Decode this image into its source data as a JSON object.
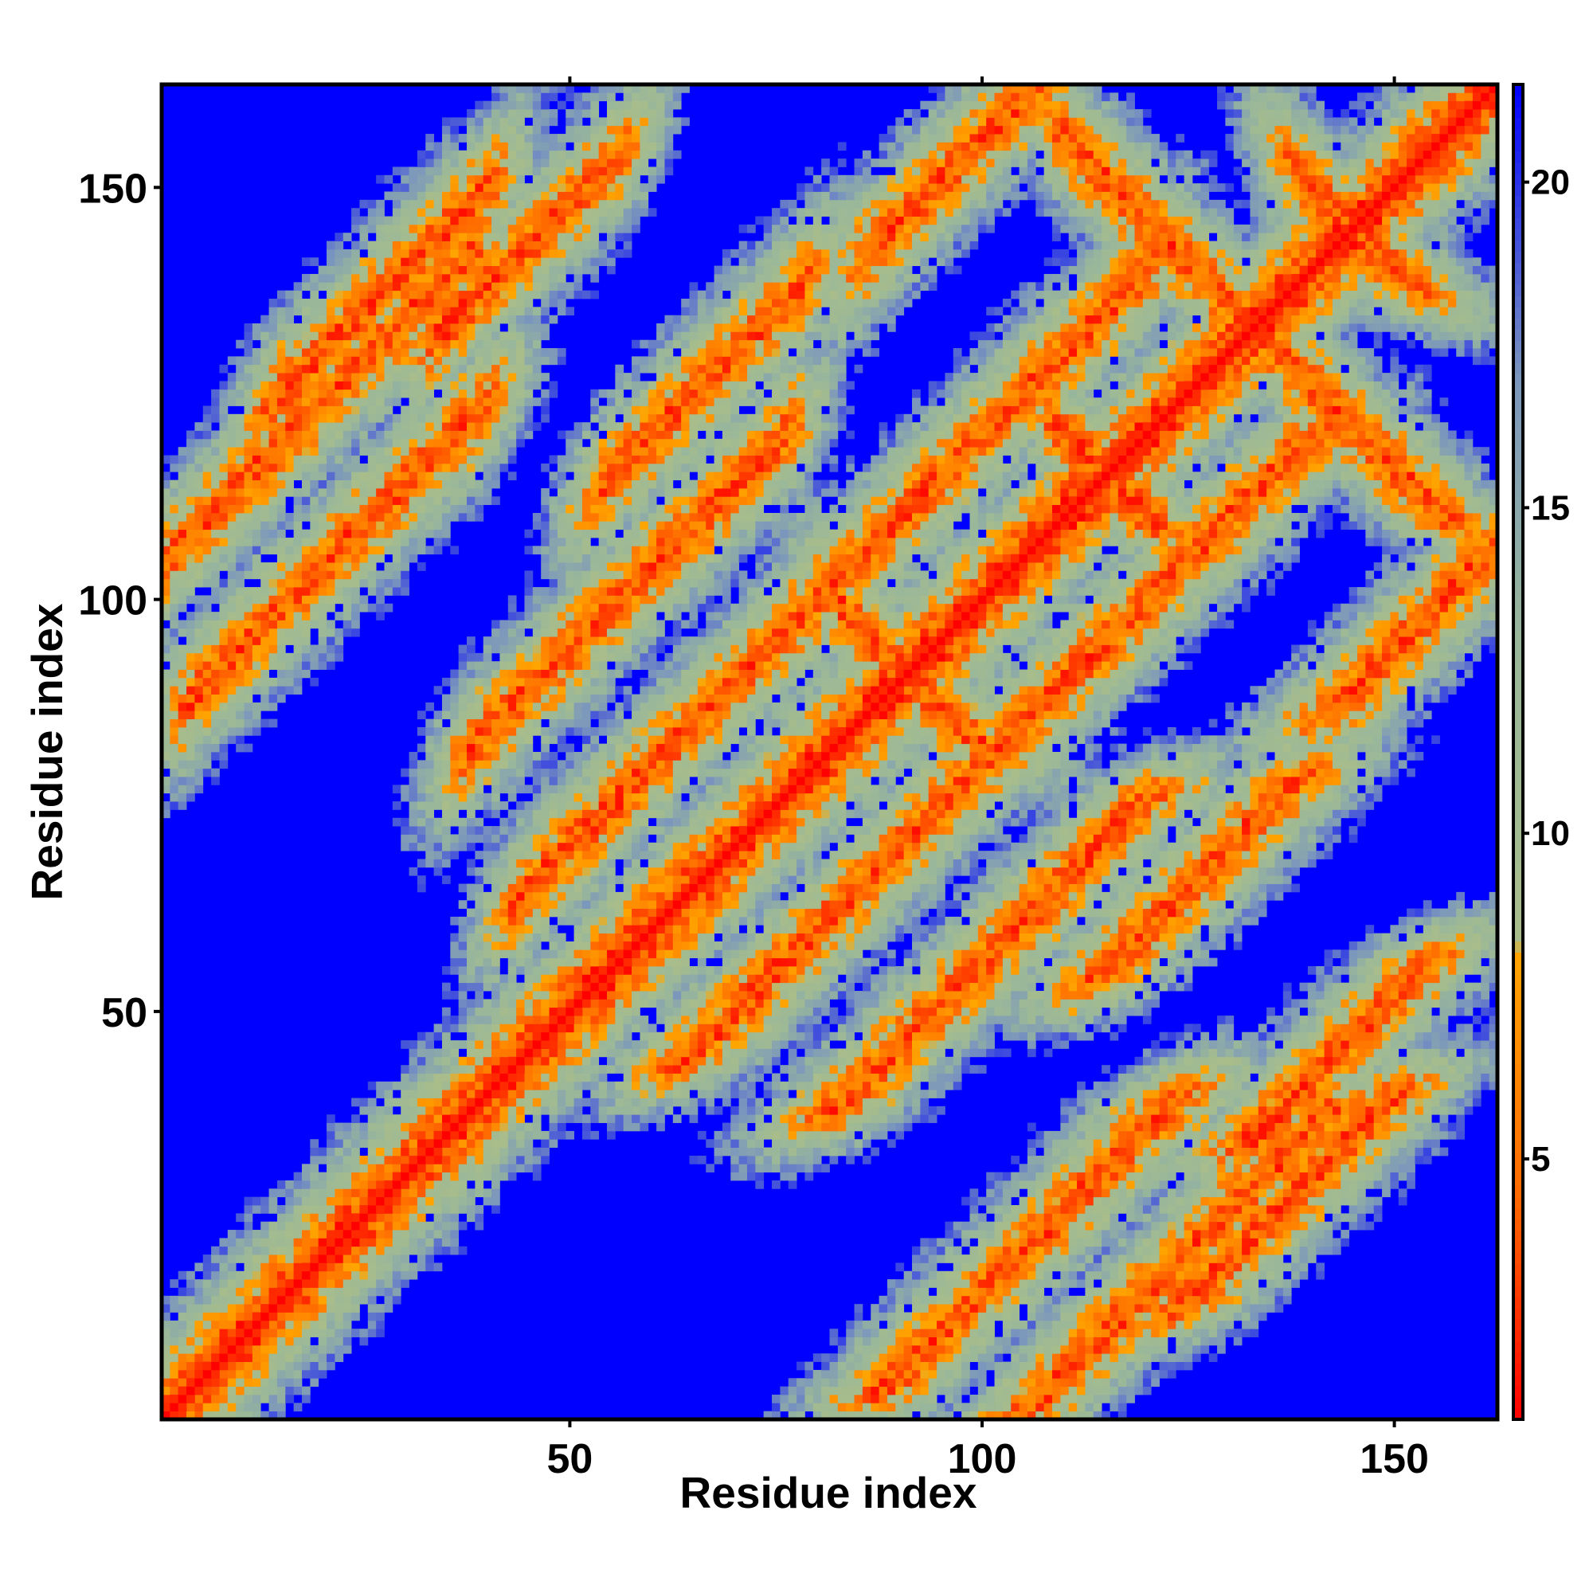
{
  "chart_data": {
    "type": "heatmap",
    "title": "",
    "xlabel": "Residue index",
    "ylabel": "Residue index",
    "n_residues": 162,
    "xlim": [
      1,
      162
    ],
    "ylim": [
      1,
      162
    ],
    "x_ticks": [
      50,
      100,
      150
    ],
    "y_ticks": [
      50,
      100,
      150
    ],
    "colorbar": {
      "ticks": [
        5,
        10,
        15,
        20
      ],
      "range": [
        1,
        21.5
      ],
      "stops": [
        {
          "value": 1,
          "color": "#ff0000"
        },
        {
          "value": 4.5,
          "color": "#ff6a00"
        },
        {
          "value": 8.2,
          "color": "#ffa500"
        },
        {
          "value": 8.3,
          "color": "#a9bd8a"
        },
        {
          "value": 13,
          "color": "#99b79a"
        },
        {
          "value": 17,
          "color": "#7b96bd"
        },
        {
          "value": 21.5,
          "color": "#0000ff"
        }
      ]
    },
    "background_color": "#0000ff",
    "diagonal_color": "#ff0000",
    "features": [
      {
        "kind": "anti",
        "c": 66,
        "lo": 36,
        "hi": 60,
        "hw": 3.4
      },
      {
        "kind": "anti",
        "c": 114,
        "lo": 102,
        "hi": 126,
        "hw": 3.4
      },
      {
        "kind": "anti",
        "c": 160,
        "lo": 128,
        "hi": 152,
        "hw": 3.4
      },
      {
        "kind": "anti",
        "c": 214,
        "lo": 190,
        "hi": 210,
        "hw": 3.4
      },
      {
        "kind": "anti",
        "c": 136,
        "lo": 104,
        "hi": 124,
        "hw": 3.0
      },
      {
        "kind": "anti",
        "c": 230,
        "lo": 109,
        "hi": 127,
        "hw": 3.0
      },
      {
        "kind": "anti",
        "c": 252,
        "lo": 134,
        "hi": 152,
        "hw": 3.0
      },
      {
        "kind": "anti",
        "c": 290,
        "lo": 138,
        "hi": 154,
        "hw": 3.0
      },
      {
        "kind": "anti",
        "c": 182,
        "lo": 82,
        "hi": 102,
        "hw": 3.0
      },
      {
        "kind": "anti",
        "c": 266,
        "lo": 110,
        "hi": 132,
        "hw": 3.0
      },
      {
        "kind": "par",
        "d": 56,
        "lo": 86,
        "hi": 108,
        "hw": 3.0
      },
      {
        "kind": "par",
        "d": 110,
        "lo": 14,
        "hi": 40,
        "hw": 3.0
      },
      {
        "kind": "par",
        "d": 98,
        "lo": 34,
        "hi": 56,
        "hw": 3.0
      },
      {
        "kind": "par",
        "d": 104,
        "lo": 2,
        "hi": 38,
        "hw": 3.2
      },
      {
        "kind": "par",
        "d": 84,
        "lo": 4,
        "hi": 40,
        "hw": 3.0
      },
      {
        "kind": "par",
        "d": 60,
        "lo": 54,
        "hi": 78,
        "hw": 3.0
      },
      {
        "kind": "par",
        "d": 44,
        "lo": 38,
        "hi": 76,
        "hw": 3.0
      },
      {
        "kind": "par",
        "d": 20,
        "lo": 44,
        "hi": 120,
        "hw": 3.0
      }
    ]
  }
}
